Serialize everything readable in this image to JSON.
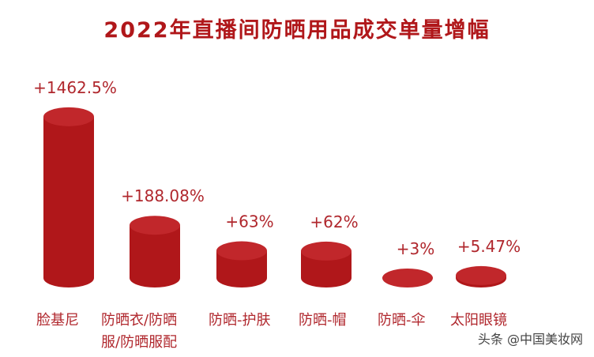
{
  "chart_data": {
    "type": "bar",
    "title": "2022年直播间防晒用品成交单量增幅",
    "categories": [
      "脸基尼",
      "防晒衣/防晒\n服/防晒服配",
      "防晒-护肤",
      "防晒-帽",
      "防晒-伞",
      "太阳眼镜"
    ],
    "values": [
      1462.5,
      188.08,
      63,
      62,
      3,
      5.47
    ],
    "data_labels": [
      "+1462.5%",
      "+188.08%",
      "+63%",
      "+62%",
      "+3%",
      "+5.47%"
    ],
    "unit": "%",
    "style": "3d-cylinder",
    "grid": false,
    "colors": {
      "body": "#b0171a",
      "top": "#c1272b",
      "label": "#b0272d"
    }
  },
  "watermark": "头条 @中国美妆网"
}
